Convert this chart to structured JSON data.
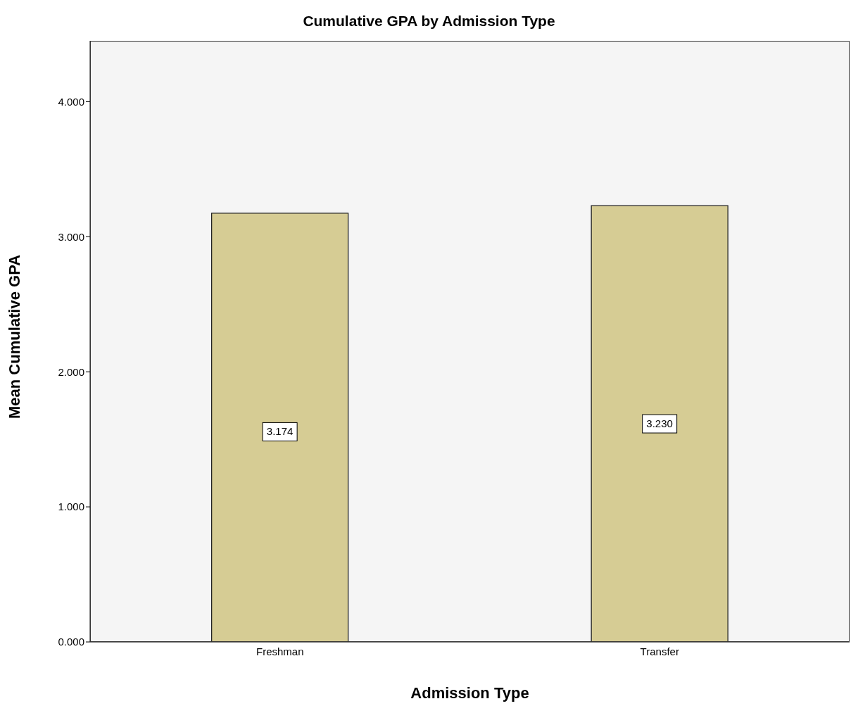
{
  "chart_data": {
    "type": "bar",
    "title": "Cumulative GPA by Admission Type",
    "xlabel": "Admission Type",
    "ylabel": "Mean Cumulative GPA",
    "categories": [
      "Freshman",
      "Transfer"
    ],
    "values": [
      3.174,
      3.23
    ],
    "value_labels": [
      "3.174",
      "3.230"
    ],
    "color": "#d6cc94",
    "ylim": [
      0,
      4.45
    ],
    "yticks": [
      {
        "value": 0,
        "label": "0.000"
      },
      {
        "value": 1,
        "label": "1.000"
      },
      {
        "value": 2,
        "label": "2.000"
      },
      {
        "value": 3,
        "label": "3.000"
      },
      {
        "value": 4,
        "label": "4.000"
      }
    ],
    "grid": false
  }
}
